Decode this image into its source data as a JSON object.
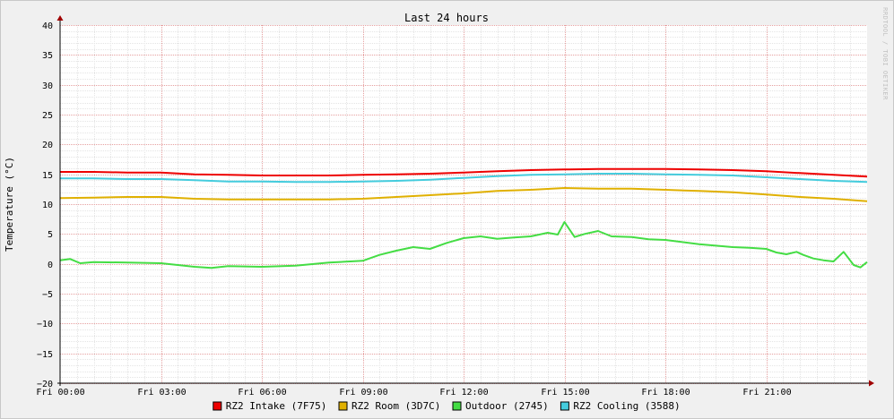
{
  "chart_data": {
    "type": "line",
    "title": "Last 24 hours",
    "ylabel": "Temperature (°C)",
    "watermark": "RRDTOOL / TOBI OETIKER",
    "ylim": [
      -20,
      40
    ],
    "y_ticks": [
      40,
      35,
      30,
      25,
      20,
      15,
      10,
      5,
      0,
      -5,
      -10,
      -15,
      -20
    ],
    "y_tick_labels": [
      "40",
      "35",
      "30",
      "25",
      "20",
      "15",
      "10",
      "5",
      "0",
      "−5",
      "−10",
      "−15",
      "−20"
    ],
    "x_ticks": [
      0,
      3,
      6,
      9,
      12,
      15,
      18,
      21
    ],
    "x_tick_labels": [
      "Fri 00:00",
      "Fri 03:00",
      "Fri 06:00",
      "Fri 09:00",
      "Fri 12:00",
      "Fri 15:00",
      "Fri 18:00",
      "Fri 21:00"
    ],
    "xlim_hours": [
      0,
      24
    ],
    "grid": true,
    "legend_position": "bottom",
    "series": [
      {
        "name": "RZ2 Intake (7F75)",
        "color": "#ee0000",
        "x": [
          0,
          1,
          2,
          3,
          4,
          5,
          6,
          7,
          8,
          9,
          10,
          11,
          12,
          13,
          14,
          15,
          16,
          17,
          18,
          19,
          20,
          21,
          22,
          23,
          24
        ],
        "values": [
          15.4,
          15.4,
          15.3,
          15.3,
          15.0,
          14.9,
          14.8,
          14.8,
          14.8,
          14.9,
          15.0,
          15.1,
          15.3,
          15.5,
          15.7,
          15.8,
          15.9,
          15.9,
          15.9,
          15.8,
          15.7,
          15.5,
          15.2,
          14.9,
          14.6
        ]
      },
      {
        "name": "RZ2 Room (3D7C)",
        "color": "#e0b000",
        "x": [
          0,
          1,
          2,
          3,
          4,
          5,
          6,
          7,
          8,
          9,
          10,
          11,
          12,
          13,
          14,
          15,
          16,
          17,
          18,
          19,
          20,
          21,
          22,
          23,
          24
        ],
        "values": [
          11.0,
          11.1,
          11.2,
          11.2,
          10.9,
          10.8,
          10.8,
          10.8,
          10.8,
          10.9,
          11.2,
          11.5,
          11.8,
          12.2,
          12.4,
          12.7,
          12.6,
          12.6,
          12.4,
          12.2,
          12.0,
          11.6,
          11.2,
          10.9,
          10.5
        ]
      },
      {
        "name": "Outdoor (2745)",
        "color": "#44dd44",
        "x": [
          0,
          0.3,
          0.6,
          1,
          2,
          3,
          4,
          4.5,
          5,
          6,
          7,
          8,
          9,
          9.5,
          10,
          10.5,
          11,
          11.5,
          12,
          12.5,
          13,
          13.5,
          14,
          14.5,
          14.8,
          15,
          15.3,
          15.6,
          16,
          16.4,
          17,
          17.5,
          18,
          19,
          20,
          20.5,
          21,
          21.3,
          21.6,
          21.9,
          22.1,
          22.4,
          22.7,
          23,
          23.3,
          23.6,
          23.8,
          24
        ],
        "values": [
          0.6,
          0.8,
          0.1,
          0.3,
          0.2,
          0.1,
          -0.5,
          -0.7,
          -0.4,
          -0.5,
          -0.3,
          0.2,
          0.5,
          1.5,
          2.2,
          2.8,
          2.5,
          3.5,
          4.3,
          4.6,
          4.2,
          4.4,
          4.6,
          5.2,
          4.9,
          7.0,
          4.5,
          5.0,
          5.5,
          4.6,
          4.5,
          4.1,
          4.0,
          3.3,
          2.8,
          2.7,
          2.5,
          1.9,
          1.6,
          2.0,
          1.5,
          0.9,
          0.6,
          0.4,
          2.0,
          -0.2,
          -0.6,
          0.3
        ]
      },
      {
        "name": "RZ2 Cooling (3588)",
        "color": "#44ccdd",
        "x": [
          0,
          1,
          2,
          3,
          4,
          5,
          6,
          7,
          8,
          9,
          10,
          11,
          12,
          13,
          14,
          15,
          16,
          17,
          18,
          19,
          20,
          21,
          22,
          23,
          24
        ],
        "values": [
          14.3,
          14.3,
          14.2,
          14.2,
          14.0,
          13.8,
          13.8,
          13.7,
          13.7,
          13.8,
          13.9,
          14.1,
          14.4,
          14.7,
          14.9,
          15.0,
          15.1,
          15.1,
          15.0,
          14.9,
          14.8,
          14.5,
          14.2,
          13.9,
          13.7
        ]
      }
    ]
  }
}
